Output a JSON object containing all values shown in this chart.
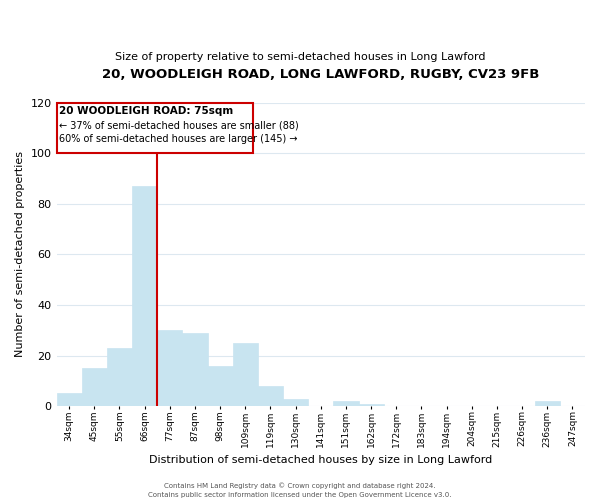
{
  "title1": "20, WOODLEIGH ROAD, LONG LAWFORD, RUGBY, CV23 9FB",
  "title2": "Size of property relative to semi-detached houses in Long Lawford",
  "xlabel": "Distribution of semi-detached houses by size in Long Lawford",
  "ylabel": "Number of semi-detached properties",
  "footnote1": "Contains HM Land Registry data © Crown copyright and database right 2024.",
  "footnote2": "Contains public sector information licensed under the Open Government Licence v3.0.",
  "bin_labels": [
    "34sqm",
    "45sqm",
    "55sqm",
    "66sqm",
    "77sqm",
    "87sqm",
    "98sqm",
    "109sqm",
    "119sqm",
    "130sqm",
    "141sqm",
    "151sqm",
    "162sqm",
    "172sqm",
    "183sqm",
    "194sqm",
    "204sqm",
    "215sqm",
    "226sqm",
    "236sqm",
    "247sqm"
  ],
  "bar_values": [
    5,
    15,
    23,
    87,
    30,
    29,
    16,
    25,
    8,
    3,
    0,
    2,
    1,
    0,
    0,
    0,
    0,
    0,
    0,
    2,
    0
  ],
  "bar_color": "#c8e4f0",
  "property_size": "75sqm",
  "pct_smaller": 37,
  "count_smaller": 88,
  "pct_larger": 60,
  "count_larger": 145,
  "annotation_title": "20 WOODLEIGH ROAD: 75sqm",
  "ylim": [
    0,
    120
  ],
  "yticks": [
    0,
    20,
    40,
    60,
    80,
    100,
    120
  ],
  "vline_color": "#cc0000",
  "box_edge_color": "#cc0000",
  "grid_color": "#dde8f0",
  "background_color": "#ffffff"
}
